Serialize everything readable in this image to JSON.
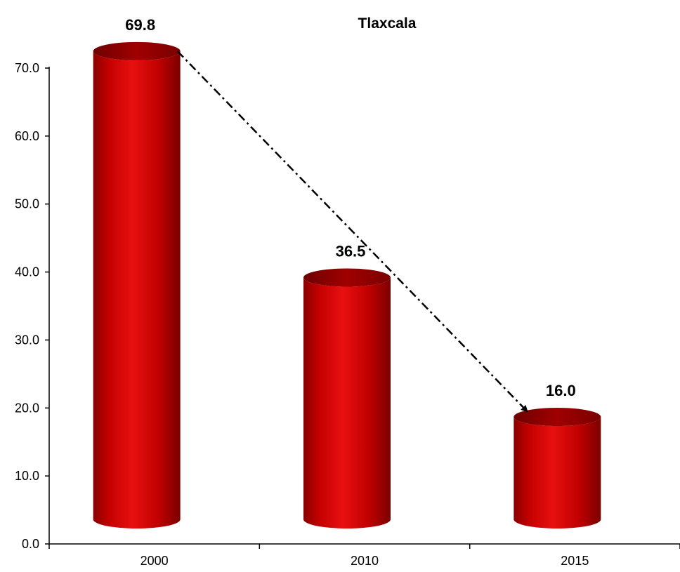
{
  "chart_data": {
    "type": "bar",
    "title": "Tlaxcala",
    "xlabel": "",
    "ylabel": "",
    "categories": [
      "2000",
      "2010",
      "2015"
    ],
    "values": [
      69.8,
      36.5,
      16.0
    ],
    "data_labels": [
      "69.8",
      "36.5",
      "16.0"
    ],
    "yticks": [
      "0.0",
      "10.0",
      "20.0",
      "30.0",
      "40.0",
      "50.0",
      "60.0",
      "70.0"
    ],
    "ylim": [
      0,
      70
    ],
    "grid": false,
    "bar_style": "3d-cylinder",
    "trend_arrow": {
      "from": "2000",
      "to": "2015",
      "style": "dash-dot"
    },
    "colors": {
      "bar": "#c00000",
      "bar_top": "#8b0000",
      "axis": "#000000"
    }
  }
}
